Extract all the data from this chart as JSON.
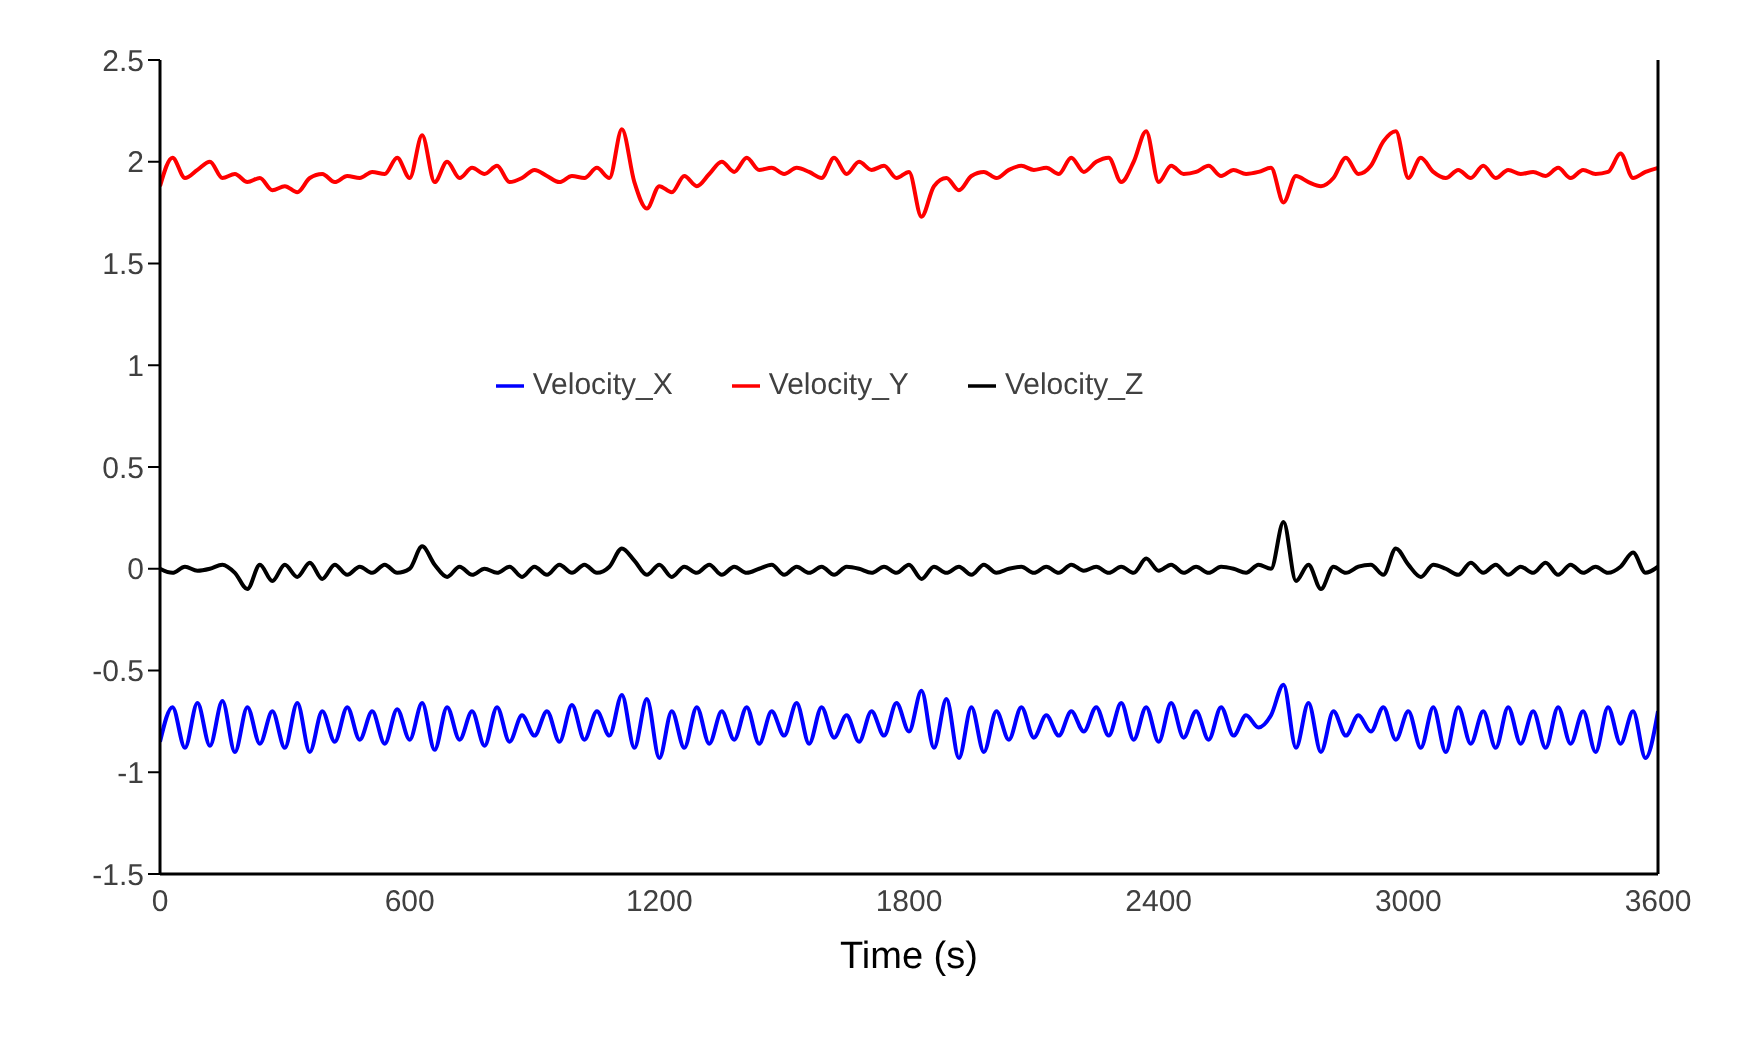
{
  "chart_data": {
    "type": "line",
    "xlabel": "Time (s)",
    "xlim": [
      0,
      3600
    ],
    "xticks": [
      0,
      600,
      1200,
      1800,
      2400,
      3000,
      3600
    ],
    "ylim": [
      -1.5,
      2.5
    ],
    "yticks": [
      -1.5,
      -1,
      -0.5,
      0,
      0.5,
      1,
      1.5,
      2,
      2.5
    ],
    "grid": false,
    "legend": "center",
    "marker": "none",
    "line_style": "solid",
    "x": [
      0,
      30,
      60,
      90,
      120,
      150,
      180,
      210,
      240,
      270,
      300,
      330,
      360,
      390,
      420,
      450,
      480,
      510,
      540,
      570,
      600,
      630,
      660,
      690,
      720,
      750,
      780,
      810,
      840,
      870,
      900,
      930,
      960,
      990,
      1020,
      1050,
      1080,
      1110,
      1140,
      1170,
      1200,
      1230,
      1260,
      1290,
      1320,
      1350,
      1380,
      1410,
      1440,
      1470,
      1500,
      1530,
      1560,
      1590,
      1620,
      1650,
      1680,
      1710,
      1740,
      1770,
      1800,
      1830,
      1860,
      1890,
      1920,
      1950,
      1980,
      2010,
      2040,
      2070,
      2100,
      2130,
      2160,
      2190,
      2220,
      2250,
      2280,
      2310,
      2340,
      2370,
      2400,
      2430,
      2460,
      2490,
      2520,
      2550,
      2580,
      2610,
      2640,
      2670,
      2700,
      2730,
      2760,
      2790,
      2820,
      2850,
      2880,
      2910,
      2940,
      2970,
      3000,
      3030,
      3060,
      3090,
      3120,
      3150,
      3180,
      3210,
      3240,
      3270,
      3300,
      3330,
      3360,
      3390,
      3420,
      3450,
      3480,
      3510,
      3540,
      3570,
      3600
    ],
    "series": [
      {
        "name": "Velocity_X",
        "color": "#0000ff",
        "values": [
          -0.85,
          -0.68,
          -0.88,
          -0.66,
          -0.87,
          -0.65,
          -0.9,
          -0.68,
          -0.86,
          -0.7,
          -0.88,
          -0.66,
          -0.9,
          -0.7,
          -0.85,
          -0.68,
          -0.84,
          -0.7,
          -0.86,
          -0.69,
          -0.84,
          -0.66,
          -0.89,
          -0.68,
          -0.84,
          -0.7,
          -0.87,
          -0.68,
          -0.85,
          -0.72,
          -0.82,
          -0.7,
          -0.85,
          -0.67,
          -0.84,
          -0.7,
          -0.82,
          -0.62,
          -0.88,
          -0.64,
          -0.93,
          -0.7,
          -0.88,
          -0.68,
          -0.86,
          -0.7,
          -0.84,
          -0.68,
          -0.86,
          -0.7,
          -0.82,
          -0.66,
          -0.86,
          -0.68,
          -0.83,
          -0.72,
          -0.85,
          -0.7,
          -0.82,
          -0.66,
          -0.8,
          -0.6,
          -0.88,
          -0.64,
          -0.93,
          -0.68,
          -0.9,
          -0.7,
          -0.84,
          -0.68,
          -0.83,
          -0.72,
          -0.82,
          -0.7,
          -0.8,
          -0.68,
          -0.82,
          -0.66,
          -0.84,
          -0.68,
          -0.85,
          -0.66,
          -0.83,
          -0.7,
          -0.84,
          -0.68,
          -0.82,
          -0.72,
          -0.78,
          -0.72,
          -0.57,
          -0.88,
          -0.66,
          -0.9,
          -0.7,
          -0.82,
          -0.72,
          -0.8,
          -0.68,
          -0.84,
          -0.7,
          -0.88,
          -0.68,
          -0.9,
          -0.68,
          -0.86,
          -0.7,
          -0.88,
          -0.68,
          -0.86,
          -0.7,
          -0.88,
          -0.68,
          -0.86,
          -0.7,
          -0.9,
          -0.68,
          -0.86,
          -0.7,
          -0.93,
          -0.7
        ]
      },
      {
        "name": "Velocity_Y",
        "color": "#ff0000",
        "values": [
          1.88,
          2.02,
          1.92,
          1.96,
          2.0,
          1.92,
          1.94,
          1.9,
          1.92,
          1.86,
          1.88,
          1.85,
          1.92,
          1.94,
          1.9,
          1.93,
          1.92,
          1.95,
          1.94,
          2.02,
          1.92,
          2.13,
          1.9,
          2.0,
          1.92,
          1.97,
          1.94,
          1.98,
          1.9,
          1.92,
          1.96,
          1.93,
          1.9,
          1.93,
          1.92,
          1.97,
          1.92,
          2.16,
          1.9,
          1.77,
          1.88,
          1.85,
          1.93,
          1.88,
          1.94,
          2.0,
          1.95,
          2.02,
          1.96,
          1.97,
          1.94,
          1.97,
          1.95,
          1.92,
          2.02,
          1.94,
          2.0,
          1.96,
          1.98,
          1.92,
          1.95,
          1.73,
          1.88,
          1.92,
          1.86,
          1.93,
          1.95,
          1.92,
          1.96,
          1.98,
          1.96,
          1.97,
          1.94,
          2.02,
          1.95,
          2.0,
          2.02,
          1.9,
          2.0,
          2.15,
          1.9,
          1.98,
          1.94,
          1.95,
          1.98,
          1.93,
          1.96,
          1.94,
          1.95,
          1.97,
          1.8,
          1.93,
          1.9,
          1.88,
          1.92,
          2.02,
          1.94,
          1.98,
          2.1,
          2.15,
          1.92,
          2.02,
          1.95,
          1.92,
          1.96,
          1.92,
          1.98,
          1.92,
          1.96,
          1.94,
          1.95,
          1.93,
          1.97,
          1.92,
          1.96,
          1.94,
          1.95,
          2.04,
          1.92,
          1.95,
          1.97
        ]
      },
      {
        "name": "Velocity_Z",
        "color": "#000000",
        "values": [
          0,
          -0.02,
          0.01,
          -0.01,
          0,
          0.02,
          -0.02,
          -0.1,
          0.02,
          -0.06,
          0.02,
          -0.04,
          0.03,
          -0.05,
          0.02,
          -0.03,
          0.01,
          -0.02,
          0.02,
          -0.02,
          0,
          0.11,
          0.02,
          -0.04,
          0.01,
          -0.03,
          0,
          -0.02,
          0.01,
          -0.04,
          0.01,
          -0.03,
          0.02,
          -0.02,
          0.02,
          -0.02,
          0.01,
          0.1,
          0.04,
          -0.03,
          0.02,
          -0.04,
          0.01,
          -0.02,
          0.02,
          -0.03,
          0.01,
          -0.02,
          0,
          0.02,
          -0.03,
          0.01,
          -0.02,
          0.01,
          -0.03,
          0.01,
          0,
          -0.02,
          0.01,
          -0.02,
          0.02,
          -0.05,
          0.01,
          -0.02,
          0.01,
          -0.03,
          0.02,
          -0.02,
          0,
          0.01,
          -0.02,
          0.01,
          -0.02,
          0.02,
          -0.01,
          0.01,
          -0.02,
          0.01,
          -0.02,
          0.05,
          -0.01,
          0.02,
          -0.02,
          0.01,
          -0.02,
          0.01,
          0,
          -0.02,
          0.02,
          0,
          0.23,
          -0.06,
          0.02,
          -0.1,
          0.01,
          -0.02,
          0.01,
          0.02,
          -0.03,
          0.1,
          0.02,
          -0.04,
          0.02,
          0,
          -0.03,
          0.03,
          -0.02,
          0.02,
          -0.03,
          0.01,
          -0.02,
          0.03,
          -0.03,
          0.02,
          -0.02,
          0.01,
          -0.02,
          0.01,
          0.08,
          -0.02,
          0.01
        ]
      }
    ]
  }
}
